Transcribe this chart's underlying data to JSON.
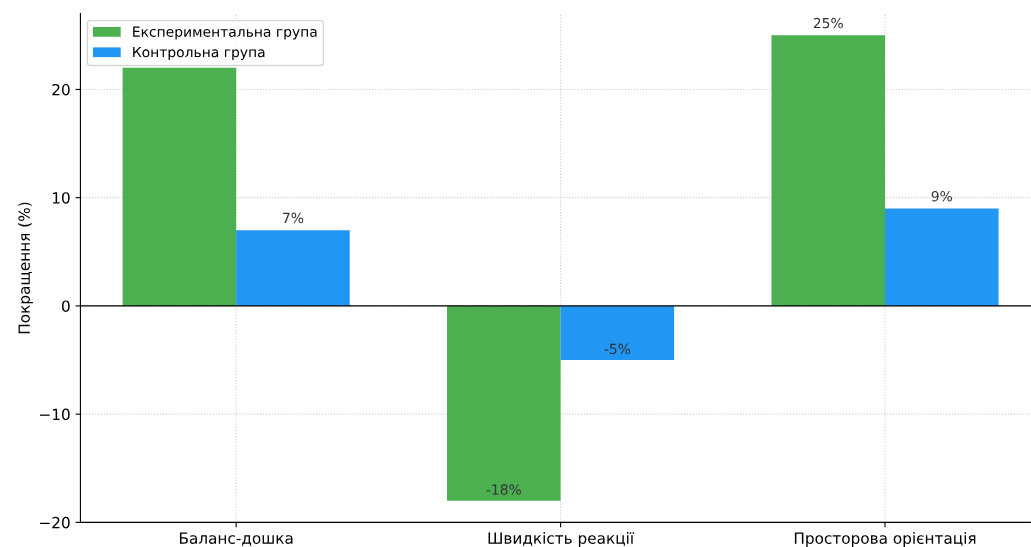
{
  "chart_data": {
    "type": "bar",
    "ylabel": "Покращення (%)",
    "categories": [
      "Баланс-дошка",
      "Швидкість реакції",
      "Просторова орієнтація"
    ],
    "series": [
      {
        "name": "Експериментальна група",
        "color": "#4caf50",
        "values": [
          22,
          -18,
          25
        ],
        "value_labels": [
          null,
          "-18%",
          "25%"
        ]
      },
      {
        "name": "Контрольна група",
        "color": "#2196f3",
        "values": [
          7,
          -5,
          9
        ],
        "value_labels": [
          "7%",
          "-5%",
          "9%"
        ]
      }
    ],
    "ylim": [
      -20,
      27
    ],
    "yticks": [
      {
        "value": -20,
        "label": "−20"
      },
      {
        "value": -10,
        "label": "−10"
      },
      0,
      10,
      20
    ],
    "ref_lines": [
      {
        "axis": "y",
        "value": 0,
        "color": "#000000",
        "line_style": "solid"
      }
    ],
    "grid": true,
    "legend": "top left"
  }
}
